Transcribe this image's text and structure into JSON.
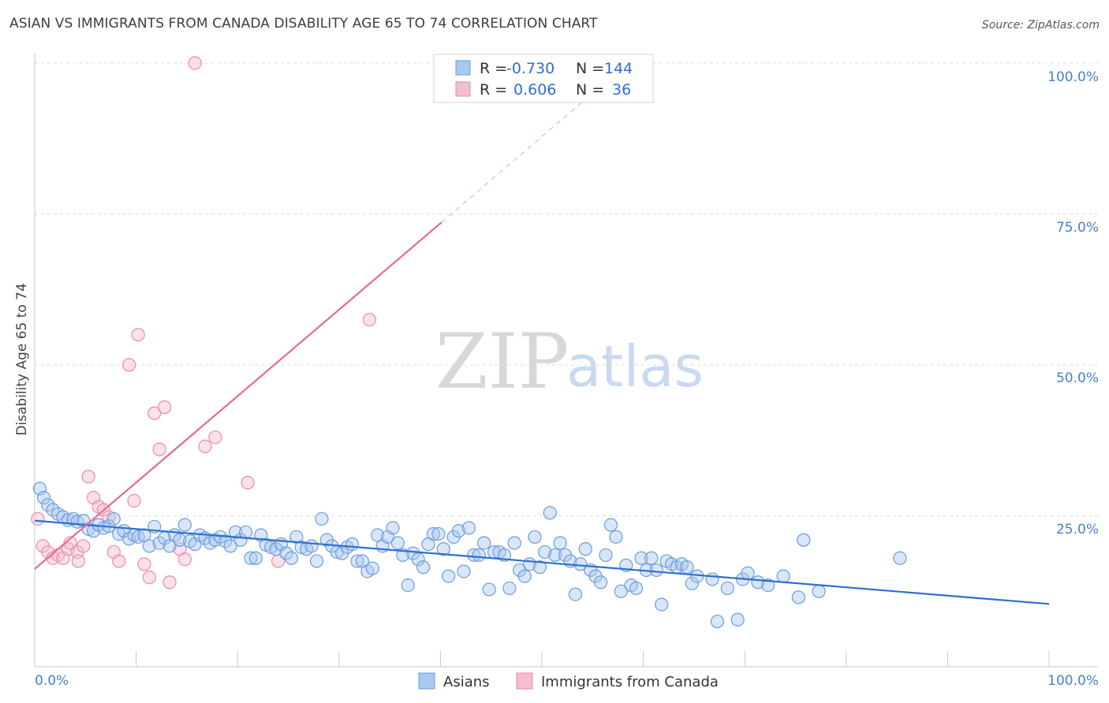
{
  "title": "ASIAN VS IMMIGRANTS FROM CANADA DISABILITY AGE 65 TO 74 CORRELATION CHART",
  "source": "Source: ZipAtlas.com",
  "watermark": {
    "part1": "ZIP",
    "part2": "atlas"
  },
  "legend": {
    "rows": [
      {
        "r_label": "R =",
        "r_value": "-0.730",
        "n_label": "N =",
        "n_value": "144",
        "color": "#a9c8f0",
        "stroke": "#6b9be0"
      },
      {
        "r_label": "R =",
        "r_value": "0.606",
        "n_label": "N =",
        "n_value": "36",
        "color": "#f6bcd0",
        "stroke": "#e88aa8"
      }
    ]
  },
  "bottom_legend": {
    "asians": "Asians",
    "canada": "Immigrants from Canada"
  },
  "axes": {
    "ylabel": "Disability Age 65 to 74",
    "x_min_label": "0.0%",
    "x_max_label": "100.0%",
    "y_ticks": [
      "100.0%",
      "75.0%",
      "50.0%",
      "25.0%"
    ]
  },
  "chart_data": {
    "type": "scatter",
    "xlabel": "",
    "ylabel": "Disability Age 65 to 74",
    "xlim": [
      0,
      100
    ],
    "ylim": [
      0,
      100
    ],
    "grid": true,
    "legend_placement": "top-center",
    "series": [
      {
        "name": "Asians",
        "color": "#6b9be0",
        "trend": {
          "x0": 0,
          "y0": 24.2,
          "x1": 100,
          "y1": 10.4
        },
        "points": [
          [
            0.5,
            29.5
          ],
          [
            0.9,
            28.0
          ],
          [
            1.3,
            26.8
          ],
          [
            1.8,
            26.0
          ],
          [
            2.3,
            25.3
          ],
          [
            2.8,
            24.8
          ],
          [
            3.3,
            24.3
          ],
          [
            3.8,
            24.5
          ],
          [
            4.2,
            24.0
          ],
          [
            4.8,
            24.2
          ],
          [
            5.3,
            22.8
          ],
          [
            5.8,
            22.5
          ],
          [
            6.3,
            23.5
          ],
          [
            6.8,
            23.0
          ],
          [
            7.3,
            23.3
          ],
          [
            7.8,
            24.5
          ],
          [
            8.3,
            22.0
          ],
          [
            8.8,
            22.5
          ],
          [
            9.3,
            21.2
          ],
          [
            9.8,
            21.8
          ],
          [
            10.2,
            21.5
          ],
          [
            10.8,
            21.8
          ],
          [
            11.3,
            20.0
          ],
          [
            11.8,
            23.2
          ],
          [
            12.3,
            20.5
          ],
          [
            12.8,
            21.3
          ],
          [
            13.3,
            20.0
          ],
          [
            13.8,
            21.8
          ],
          [
            14.3,
            21.0
          ],
          [
            14.8,
            23.5
          ],
          [
            15.3,
            20.8
          ],
          [
            15.8,
            20.3
          ],
          [
            16.3,
            21.8
          ],
          [
            16.8,
            21.3
          ],
          [
            17.3,
            20.5
          ],
          [
            17.8,
            21.0
          ],
          [
            18.3,
            21.5
          ],
          [
            18.8,
            20.8
          ],
          [
            19.3,
            20.0
          ],
          [
            19.8,
            22.3
          ],
          [
            20.3,
            21.0
          ],
          [
            20.8,
            22.3
          ],
          [
            21.3,
            18.0
          ],
          [
            21.8,
            18.0
          ],
          [
            22.3,
            21.8
          ],
          [
            22.8,
            20.2
          ],
          [
            23.3,
            19.8
          ],
          [
            23.8,
            19.5
          ],
          [
            24.3,
            20.3
          ],
          [
            24.8,
            18.8
          ],
          [
            25.3,
            18.0
          ],
          [
            25.8,
            21.5
          ],
          [
            26.3,
            19.8
          ],
          [
            26.8,
            19.5
          ],
          [
            27.3,
            20.0
          ],
          [
            27.8,
            17.5
          ],
          [
            28.3,
            24.5
          ],
          [
            28.8,
            21.0
          ],
          [
            29.3,
            20.0
          ],
          [
            29.8,
            19.0
          ],
          [
            30.3,
            18.8
          ],
          [
            30.8,
            19.8
          ],
          [
            31.3,
            20.3
          ],
          [
            31.8,
            17.5
          ],
          [
            32.3,
            17.5
          ],
          [
            32.8,
            15.8
          ],
          [
            33.3,
            16.3
          ],
          [
            33.8,
            21.8
          ],
          [
            34.3,
            20.0
          ],
          [
            34.8,
            21.5
          ],
          [
            35.3,
            23.0
          ],
          [
            35.8,
            20.5
          ],
          [
            36.3,
            18.5
          ],
          [
            36.8,
            13.5
          ],
          [
            37.3,
            18.8
          ],
          [
            37.8,
            17.8
          ],
          [
            38.3,
            16.5
          ],
          [
            38.8,
            20.3
          ],
          [
            39.3,
            22.0
          ],
          [
            39.8,
            22.0
          ],
          [
            40.3,
            19.5
          ],
          [
            40.8,
            15.0
          ],
          [
            41.3,
            21.5
          ],
          [
            41.8,
            22.5
          ],
          [
            42.3,
            15.8
          ],
          [
            42.8,
            23.0
          ],
          [
            43.3,
            18.5
          ],
          [
            43.8,
            18.5
          ],
          [
            44.3,
            20.5
          ],
          [
            44.8,
            12.8
          ],
          [
            45.3,
            19.0
          ],
          [
            45.8,
            19.0
          ],
          [
            46.3,
            18.5
          ],
          [
            46.8,
            13.0
          ],
          [
            47.3,
            20.5
          ],
          [
            47.8,
            16.0
          ],
          [
            48.3,
            15.0
          ],
          [
            48.8,
            17.0
          ],
          [
            49.3,
            21.5
          ],
          [
            49.8,
            16.5
          ],
          [
            50.3,
            19.0
          ],
          [
            50.8,
            25.5
          ],
          [
            51.3,
            18.5
          ],
          [
            51.8,
            20.5
          ],
          [
            52.3,
            18.5
          ],
          [
            52.8,
            17.5
          ],
          [
            53.3,
            12.0
          ],
          [
            53.8,
            17.0
          ],
          [
            54.3,
            19.5
          ],
          [
            54.8,
            16.0
          ],
          [
            55.3,
            15.0
          ],
          [
            55.8,
            14.0
          ],
          [
            56.3,
            18.5
          ],
          [
            56.8,
            23.5
          ],
          [
            57.3,
            21.5
          ],
          [
            57.8,
            12.5
          ],
          [
            58.3,
            16.8
          ],
          [
            58.8,
            13.5
          ],
          [
            59.3,
            13.0
          ],
          [
            59.8,
            18.0
          ],
          [
            60.3,
            16.0
          ],
          [
            60.8,
            18.0
          ],
          [
            61.3,
            16.0
          ],
          [
            61.8,
            10.3
          ],
          [
            62.3,
            17.5
          ],
          [
            62.8,
            17.0
          ],
          [
            63.3,
            16.5
          ],
          [
            63.8,
            17.0
          ],
          [
            64.3,
            16.5
          ],
          [
            64.8,
            13.8
          ],
          [
            65.3,
            15.0
          ],
          [
            66.8,
            14.5
          ],
          [
            67.3,
            7.5
          ],
          [
            68.3,
            13.0
          ],
          [
            69.3,
            7.8
          ],
          [
            69.8,
            14.5
          ],
          [
            70.3,
            15.5
          ],
          [
            71.3,
            14.0
          ],
          [
            72.3,
            13.5
          ],
          [
            73.8,
            15.0
          ],
          [
            75.3,
            11.5
          ],
          [
            75.8,
            21.0
          ],
          [
            77.3,
            12.5
          ],
          [
            85.3,
            18.0
          ]
        ]
      },
      {
        "name": "Immigrants from Canada",
        "color": "#e88aa8",
        "trend": {
          "x0": 0,
          "y0": 16.2,
          "x1": 40.1,
          "y1": 73.6,
          "dashed_to_x": 55,
          "dashed_to_y": 95
        },
        "points": [
          [
            0.3,
            24.5
          ],
          [
            0.8,
            20.0
          ],
          [
            1.3,
            19.0
          ],
          [
            1.8,
            18.0
          ],
          [
            2.3,
            18.5
          ],
          [
            2.8,
            18.0
          ],
          [
            3.3,
            19.5
          ],
          [
            3.5,
            20.5
          ],
          [
            4.2,
            19.0
          ],
          [
            4.3,
            17.5
          ],
          [
            4.8,
            20.0
          ],
          [
            5.3,
            31.5
          ],
          [
            5.8,
            28.0
          ],
          [
            6.3,
            26.5
          ],
          [
            6.8,
            26.0
          ],
          [
            7.3,
            24.8
          ],
          [
            7.8,
            19.0
          ],
          [
            8.3,
            17.5
          ],
          [
            9.3,
            50.0
          ],
          [
            9.8,
            27.5
          ],
          [
            10.2,
            55.0
          ],
          [
            10.8,
            17.0
          ],
          [
            11.3,
            14.8
          ],
          [
            11.8,
            42.0
          ],
          [
            12.3,
            36.0
          ],
          [
            12.8,
            43.0
          ],
          [
            13.3,
            14.0
          ],
          [
            14.3,
            19.5
          ],
          [
            14.8,
            17.8
          ],
          [
            15.8,
            100.0
          ],
          [
            16.8,
            36.5
          ],
          [
            17.8,
            38.0
          ],
          [
            21.0,
            30.5
          ],
          [
            24.0,
            17.5
          ],
          [
            33.0,
            57.5
          ],
          [
            40.1,
            100.0
          ]
        ]
      }
    ]
  }
}
